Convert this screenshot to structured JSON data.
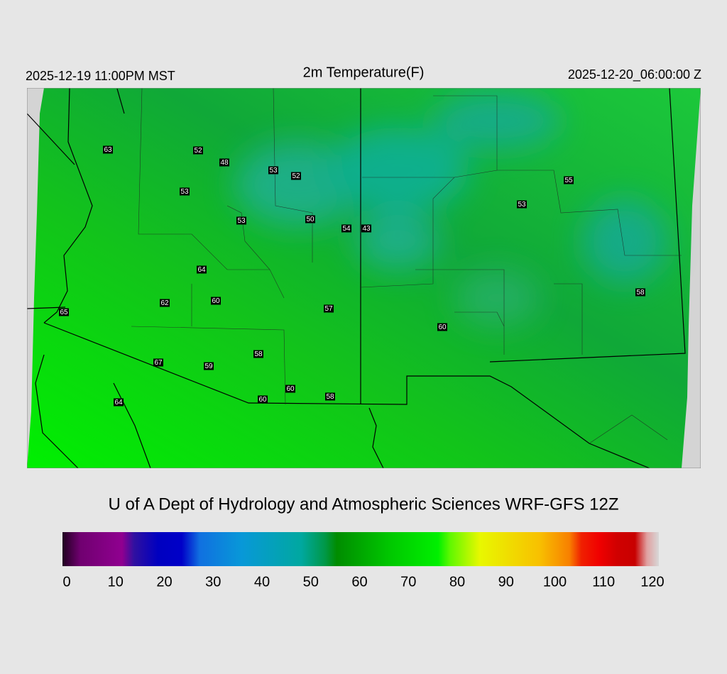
{
  "header": {
    "valid_local": "2025-12-19 11:00PM MST",
    "title": "2m Temperature(F)",
    "valid_utc": "2025-12-20_06:00:00 Z"
  },
  "stations": [
    63,
    52,
    48,
    53,
    52,
    53,
    53,
    50,
    54,
    43,
    55,
    53,
    64,
    62,
    60,
    65,
    57,
    60,
    58,
    58,
    67,
    59,
    60,
    58,
    60,
    64
  ],
  "credit": "U of A Dept of Hydrology and Atmospheric Sciences WRF-GFS 12Z",
  "colorbar": {
    "ticks": [
      0,
      10,
      20,
      30,
      40,
      50,
      60,
      70,
      80,
      90,
      100,
      110,
      120
    ]
  }
}
